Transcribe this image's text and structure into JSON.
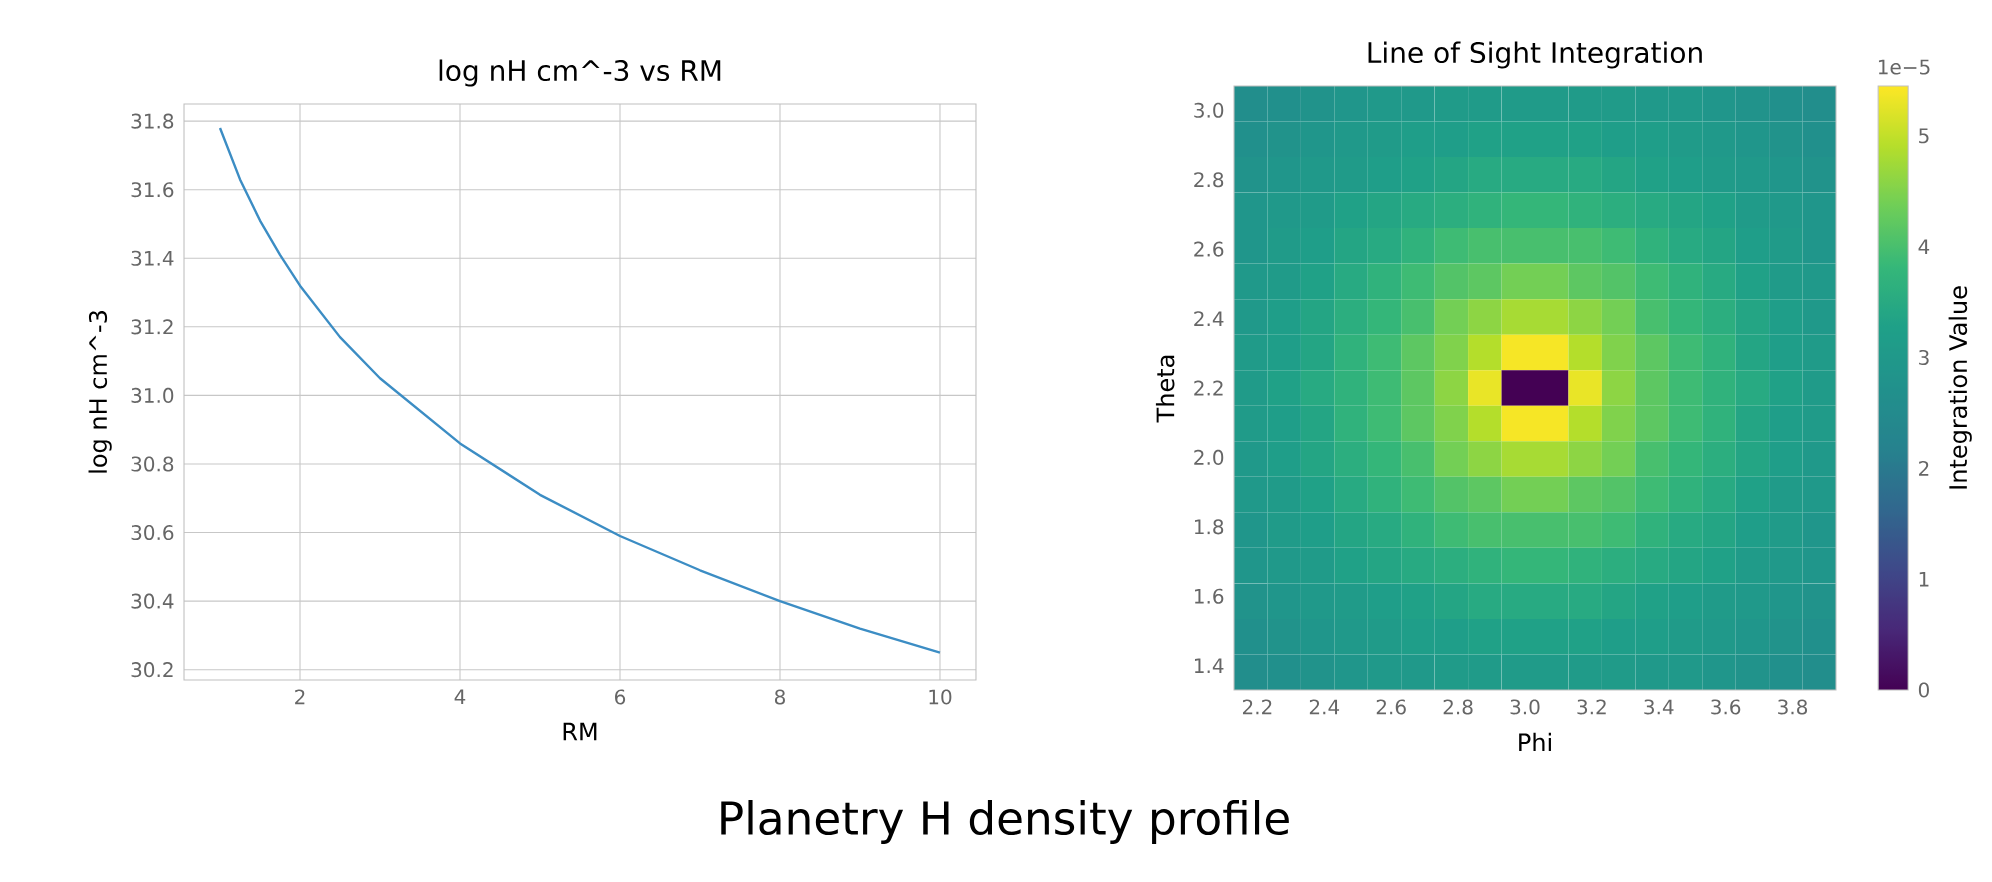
{
  "chart_data": [
    {
      "type": "line",
      "title": "log nH cm^-3 vs RM",
      "xlabel": "RM",
      "ylabel": "log nH cm^-3",
      "color": "#3c8dc4",
      "grid": true,
      "x": [
        1,
        1.25,
        1.5,
        1.75,
        2,
        2.5,
        3,
        4,
        5,
        6,
        7,
        8,
        9,
        10
      ],
      "values": [
        31.78,
        31.63,
        31.51,
        31.41,
        31.32,
        31.17,
        31.05,
        30.86,
        30.71,
        30.59,
        30.49,
        30.4,
        30.32,
        30.25
      ],
      "xlim": [
        0.55,
        10.45
      ],
      "ylim": [
        30.17,
        31.85
      ],
      "xticks": [
        2,
        4,
        6,
        8,
        10
      ],
      "yticks": [
        30.2,
        30.4,
        30.6,
        30.8,
        {
          "value": 31,
          "label": "31.0"
        },
        31.2,
        31.4,
        31.6,
        31.8
      ],
      "annotations": [
        "Planetry H density profile"
      ]
    },
    {
      "type": "heatmap",
      "title": "Line of Sight Integration",
      "xlabel": "Phi",
      "ylabel": "Theta",
      "clabel": "Integration Value",
      "xlim": [
        2.13,
        3.93
      ],
      "ylim": [
        1.33,
        3.07
      ],
      "xticks": [
        2.2,
        2.4,
        2.6,
        2.8,
        {
          "value": 3,
          "label": "3.0"
        },
        3.2,
        3.4,
        3.6,
        3.8
      ],
      "yticks": [
        1.4,
        1.6,
        1.8,
        {
          "value": 2,
          "label": "2.0"
        },
        2.2,
        2.4,
        2.6,
        2.8,
        {
          "value": 3,
          "label": "3.0"
        }
      ],
      "clim": [
        0,
        5.45
      ],
      "cticks": [
        0,
        1,
        2,
        3,
        4,
        5
      ],
      "annotations": [
        "1e−5"
      ],
      "cells": [
        [
          2.6,
          2.7,
          2.8,
          2.9,
          3.0,
          3.0,
          3.1,
          3.1,
          3.1,
          3.1,
          3.1,
          3.1,
          3.0,
          3.0,
          2.9,
          2.8,
          2.7,
          2.6
        ],
        [
          2.7,
          2.8,
          2.9,
          3.0,
          3.1,
          3.2,
          3.2,
          3.3,
          3.3,
          3.3,
          3.3,
          3.2,
          3.2,
          3.1,
          3.0,
          2.9,
          2.8,
          2.7
        ],
        [
          2.8,
          2.9,
          3.0,
          3.1,
          3.2,
          3.3,
          3.4,
          3.5,
          3.5,
          3.5,
          3.5,
          3.4,
          3.3,
          3.2,
          3.1,
          3.0,
          2.9,
          2.8
        ],
        [
          2.9,
          3.0,
          3.1,
          3.3,
          3.4,
          3.5,
          3.6,
          3.7,
          3.8,
          3.8,
          3.7,
          3.6,
          3.5,
          3.4,
          3.3,
          3.1,
          3.0,
          2.9
        ],
        [
          2.9,
          3.1,
          3.2,
          3.4,
          3.5,
          3.7,
          3.9,
          4.0,
          4.0,
          4.0,
          4.0,
          3.9,
          3.7,
          3.5,
          3.4,
          3.2,
          3.1,
          2.9
        ],
        [
          3.0,
          3.1,
          3.3,
          3.5,
          3.7,
          3.9,
          4.1,
          4.2,
          4.4,
          4.4,
          4.2,
          4.1,
          3.9,
          3.7,
          3.5,
          3.3,
          3.1,
          3.0
        ],
        [
          3.0,
          3.2,
          3.4,
          3.6,
          3.8,
          4.0,
          4.4,
          4.6,
          4.8,
          4.8,
          4.6,
          4.4,
          4.0,
          3.8,
          3.6,
          3.4,
          3.2,
          3.0
        ],
        [
          3.1,
          3.2,
          3.4,
          3.7,
          3.9,
          4.2,
          4.5,
          4.9,
          5.4,
          5.4,
          4.9,
          4.5,
          4.2,
          3.9,
          3.7,
          3.4,
          3.2,
          3.1
        ],
        [
          3.1,
          3.3,
          3.5,
          3.7,
          3.9,
          4.2,
          4.6,
          5.3,
          0,
          0,
          5.3,
          4.6,
          4.2,
          3.9,
          3.7,
          3.5,
          3.3,
          3.1
        ],
        [
          3.1,
          3.2,
          3.4,
          3.7,
          3.9,
          4.2,
          4.5,
          4.9,
          5.4,
          5.4,
          4.9,
          4.5,
          4.2,
          3.9,
          3.7,
          3.4,
          3.2,
          3.1
        ],
        [
          3.0,
          3.2,
          3.4,
          3.6,
          3.8,
          4.0,
          4.4,
          4.6,
          4.8,
          4.8,
          4.6,
          4.4,
          4.0,
          3.8,
          3.6,
          3.4,
          3.2,
          3.0
        ],
        [
          3.0,
          3.1,
          3.3,
          3.5,
          3.7,
          3.9,
          4.1,
          4.2,
          4.4,
          4.4,
          4.2,
          4.1,
          3.9,
          3.7,
          3.5,
          3.3,
          3.1,
          3.0
        ],
        [
          2.9,
          3.1,
          3.2,
          3.4,
          3.5,
          3.7,
          3.9,
          4.0,
          4.0,
          4.0,
          4.0,
          3.9,
          3.7,
          3.5,
          3.4,
          3.2,
          3.1,
          2.9
        ],
        [
          2.9,
          3.0,
          3.1,
          3.3,
          3.4,
          3.5,
          3.6,
          3.7,
          3.8,
          3.8,
          3.7,
          3.6,
          3.5,
          3.4,
          3.3,
          3.1,
          3.0,
          2.9
        ],
        [
          2.8,
          2.9,
          3.0,
          3.1,
          3.2,
          3.3,
          3.4,
          3.5,
          3.5,
          3.5,
          3.5,
          3.4,
          3.3,
          3.2,
          3.1,
          3.0,
          2.9,
          2.8
        ],
        [
          2.7,
          2.8,
          2.9,
          3.0,
          3.1,
          3.2,
          3.2,
          3.3,
          3.3,
          3.3,
          3.3,
          3.2,
          3.2,
          3.1,
          3.0,
          2.9,
          2.8,
          2.7
        ],
        [
          2.6,
          2.7,
          2.8,
          2.9,
          3.0,
          3.0,
          3.1,
          3.1,
          3.1,
          3.1,
          3.1,
          3.1,
          3.0,
          3.0,
          2.9,
          2.8,
          2.7,
          2.6
        ]
      ]
    }
  ]
}
